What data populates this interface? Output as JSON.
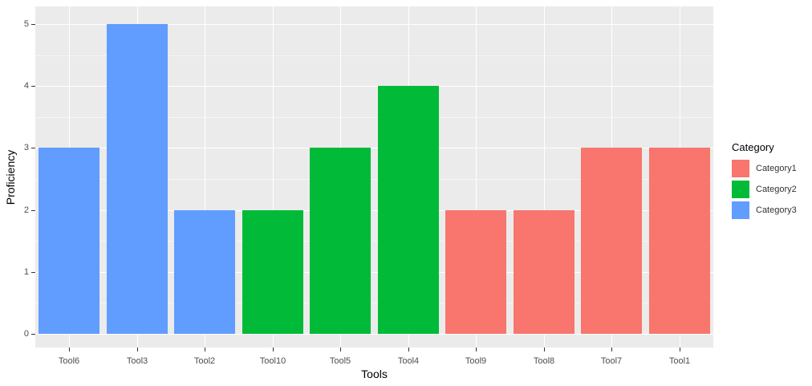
{
  "chart_data": {
    "type": "bar",
    "title": "",
    "xlabel": "Tools",
    "ylabel": "Proficiency",
    "categories": [
      "Tool6",
      "Tool3",
      "Tool2",
      "Tool10",
      "Tool5",
      "Tool4",
      "Tool9",
      "Tool8",
      "Tool7",
      "Tool1"
    ],
    "values": [
      3,
      5,
      2,
      2,
      3,
      4,
      2,
      2,
      3,
      3
    ],
    "groups": [
      "Category3",
      "Category3",
      "Category3",
      "Category2",
      "Category2",
      "Category2",
      "Category1",
      "Category1",
      "Category1",
      "Category1"
    ],
    "ylim": [
      0,
      5
    ],
    "yticks": [
      0,
      1,
      2,
      3,
      4,
      5
    ],
    "grid": true,
    "legend": {
      "title": "Category",
      "position": "right",
      "entries": [
        {
          "label": "Category1",
          "color": "#F8766D"
        },
        {
          "label": "Category2",
          "color": "#00BA38"
        },
        {
          "label": "Category3",
          "color": "#619CFF"
        }
      ]
    },
    "style": {
      "panel_background": "#EBEBEB",
      "gridline_color": "#FFFFFF",
      "tick_label_color": "#4D4D4D",
      "axis_title_color": "#000000"
    }
  }
}
